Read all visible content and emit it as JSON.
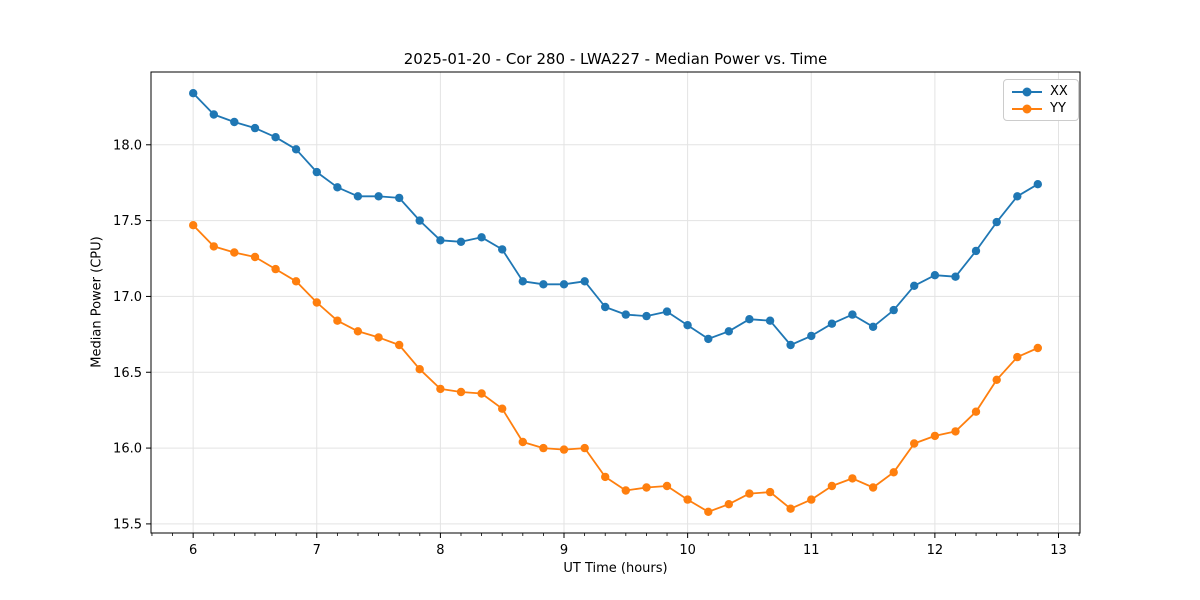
{
  "chart_data": {
    "type": "line",
    "title": "2025-01-20 - Cor 280 - LWA227 - Median Power vs. Time",
    "xlabel": "UT Time (hours)",
    "ylabel": "Median Power (CPU)",
    "xlim": [
      5.659,
      13.174
    ],
    "ylim": [
      15.44,
      18.48
    ],
    "xticks": [
      6,
      7,
      8,
      9,
      10,
      11,
      12,
      13
    ],
    "yticks": [
      15.5,
      16.0,
      16.5,
      17.0,
      17.5,
      18.0
    ],
    "x_minor_step_hours": 0.1667,
    "grid": true,
    "legend_position": "upper right",
    "x": [
      6.0,
      6.167,
      6.333,
      6.5,
      6.667,
      6.833,
      7.0,
      7.167,
      7.333,
      7.5,
      7.667,
      7.833,
      8.0,
      8.167,
      8.333,
      8.5,
      8.667,
      8.833,
      9.0,
      9.167,
      9.333,
      9.5,
      9.667,
      9.833,
      10.0,
      10.167,
      10.333,
      10.5,
      10.667,
      10.833,
      11.0,
      11.167,
      11.333,
      11.5,
      11.667,
      11.833,
      12.0,
      12.167,
      12.333,
      12.5,
      12.667,
      12.833
    ],
    "series": [
      {
        "name": "XX",
        "color": "#1f77b4",
        "marker": "circle",
        "values": [
          18.34,
          18.2,
          18.15,
          18.11,
          18.05,
          17.97,
          17.82,
          17.72,
          17.66,
          17.66,
          17.65,
          17.5,
          17.37,
          17.36,
          17.39,
          17.31,
          17.1,
          17.08,
          17.08,
          17.1,
          16.93,
          16.88,
          16.87,
          16.9,
          16.81,
          16.72,
          16.77,
          16.85,
          16.84,
          16.68,
          16.74,
          16.82,
          16.88,
          16.8,
          16.91,
          17.07,
          17.14,
          17.13,
          17.3,
          17.49,
          17.66,
          17.74
        ]
      },
      {
        "name": "YY",
        "color": "#ff7f0e",
        "marker": "circle",
        "values": [
          17.47,
          17.33,
          17.29,
          17.26,
          17.18,
          17.1,
          16.96,
          16.84,
          16.77,
          16.73,
          16.68,
          16.52,
          16.39,
          16.37,
          16.36,
          16.26,
          16.04,
          16.0,
          15.99,
          16.0,
          15.81,
          15.72,
          15.74,
          15.75,
          15.66,
          15.58,
          15.63,
          15.7,
          15.71,
          15.6,
          15.66,
          15.75,
          15.8,
          15.74,
          15.84,
          16.03,
          16.08,
          16.11,
          16.24,
          16.45,
          16.6,
          16.66
        ]
      }
    ]
  },
  "style": {
    "background": "#ffffff",
    "axes_background": "#ffffff",
    "spine_color": "#000000",
    "grid_color": "#e3e3e3",
    "tick_color": "#000000",
    "text_color": "#000000"
  }
}
